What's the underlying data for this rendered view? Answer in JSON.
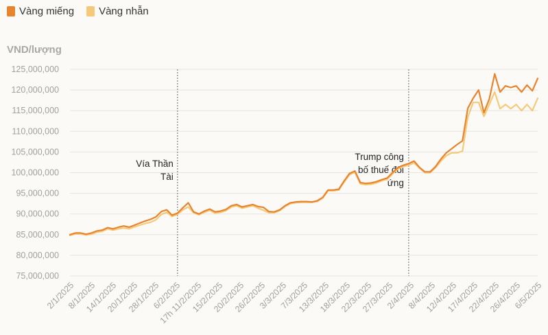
{
  "chart_data": {
    "type": "line",
    "ylabel": "VND/lượng",
    "ylim": [
      75000000,
      125000000
    ],
    "yticks": [
      "75,000,000",
      "80,000,000",
      "85,000,000",
      "90,000,000",
      "95,000,000",
      "100,000,000",
      "105,000,000",
      "110,000,000",
      "115,000,000",
      "120,000,000",
      "125,000,000"
    ],
    "ytick_values": [
      75000000,
      80000000,
      85000000,
      90000000,
      95000000,
      100000000,
      105000000,
      110000000,
      115000000,
      120000000,
      125000000
    ],
    "legend_position": "top-left",
    "grid": "horizontal",
    "x_labels": [
      "2/1/2025",
      "8/1/2025",
      "14/1/2025",
      "20/1/2025",
      "28/1/2025",
      "6/2/2025",
      "17h 11/2/2025",
      "15/2/2025",
      "20/2/2025",
      "26/2/2025",
      "3/3/2025",
      "7/3/2025",
      "13/3/2025",
      "18/3/2025",
      "22/3/2025",
      "27/3/2025",
      "2/4/2025",
      "8/4/2025",
      "12/4/2025",
      "17/4/2025",
      "22/4/2025",
      "26/4/2025",
      "6/5/2025"
    ],
    "series": [
      {
        "name": "Vàng miếng",
        "color": "#e8832e",
        "values": [
          85.0,
          85.4,
          85.4,
          85.1,
          85.4,
          85.9,
          86.1,
          86.7,
          86.4,
          86.8,
          87.1,
          86.8,
          87.3,
          87.8,
          88.3,
          88.7,
          89.3,
          90.6,
          91.0,
          89.7,
          90.2,
          91.5,
          92.7,
          90.5,
          90.0,
          90.7,
          91.2,
          90.5,
          90.7,
          91.1,
          92.0,
          92.3,
          91.7,
          92.0,
          92.3,
          91.8,
          91.6,
          90.6,
          90.5,
          91.0,
          92.0,
          92.7,
          92.9,
          93.0,
          93.0,
          92.9,
          93.2,
          94.0,
          95.8,
          95.8,
          96.0,
          98.0,
          99.8,
          100.4,
          97.6,
          97.4,
          97.5,
          97.8,
          98.3,
          98.7,
          100.0,
          101.2,
          101.8,
          102.2,
          102.8,
          101.3,
          100.2,
          100.2,
          101.5,
          103.3,
          104.8,
          105.8,
          106.8,
          107.7,
          115.6,
          118.0,
          120.0,
          114.5,
          117.8,
          123.9,
          119.5,
          121.0,
          120.6,
          121.0,
          119.5,
          121.2,
          119.8,
          122.8
        ]
      },
      {
        "name": "Vàng nhẫn",
        "color": "#f5c97a",
        "values": [
          84.8,
          85.2,
          85.2,
          84.9,
          85.1,
          85.6,
          85.8,
          86.4,
          86.1,
          86.4,
          86.6,
          86.4,
          86.9,
          87.3,
          87.7,
          88.0,
          88.6,
          89.9,
          90.4,
          89.4,
          89.9,
          91.0,
          91.7,
          90.3,
          89.8,
          90.4,
          90.9,
          90.2,
          90.4,
          90.8,
          91.7,
          92.0,
          91.4,
          91.7,
          92.0,
          91.4,
          90.9,
          90.3,
          90.3,
          90.8,
          91.8,
          92.5,
          92.7,
          92.8,
          92.8,
          92.8,
          93.0,
          93.8,
          95.6,
          95.6,
          95.8,
          97.7,
          99.5,
          100.1,
          97.3,
          97.1,
          97.2,
          97.5,
          98.0,
          98.4,
          99.7,
          100.9,
          101.5,
          101.8,
          102.4,
          101.1,
          100.0,
          100.0,
          101.2,
          102.8,
          104.1,
          104.8,
          104.8,
          105.2,
          113.4,
          117.0,
          117.0,
          113.6,
          116.5,
          119.5,
          115.5,
          116.5,
          115.5,
          116.5,
          115.0,
          116.5,
          115.0,
          118.0
        ]
      }
    ],
    "vlines": [
      {
        "label": "Vía Thần Tài",
        "label_lines": [
          "Vía Thần",
          "Tài"
        ],
        "index": 20
      },
      {
        "label": "Trump công bố thuế đối ứng",
        "label_lines": [
          "Trump công",
          "bố thuế đối",
          "ứng"
        ],
        "index": 63
      }
    ]
  }
}
